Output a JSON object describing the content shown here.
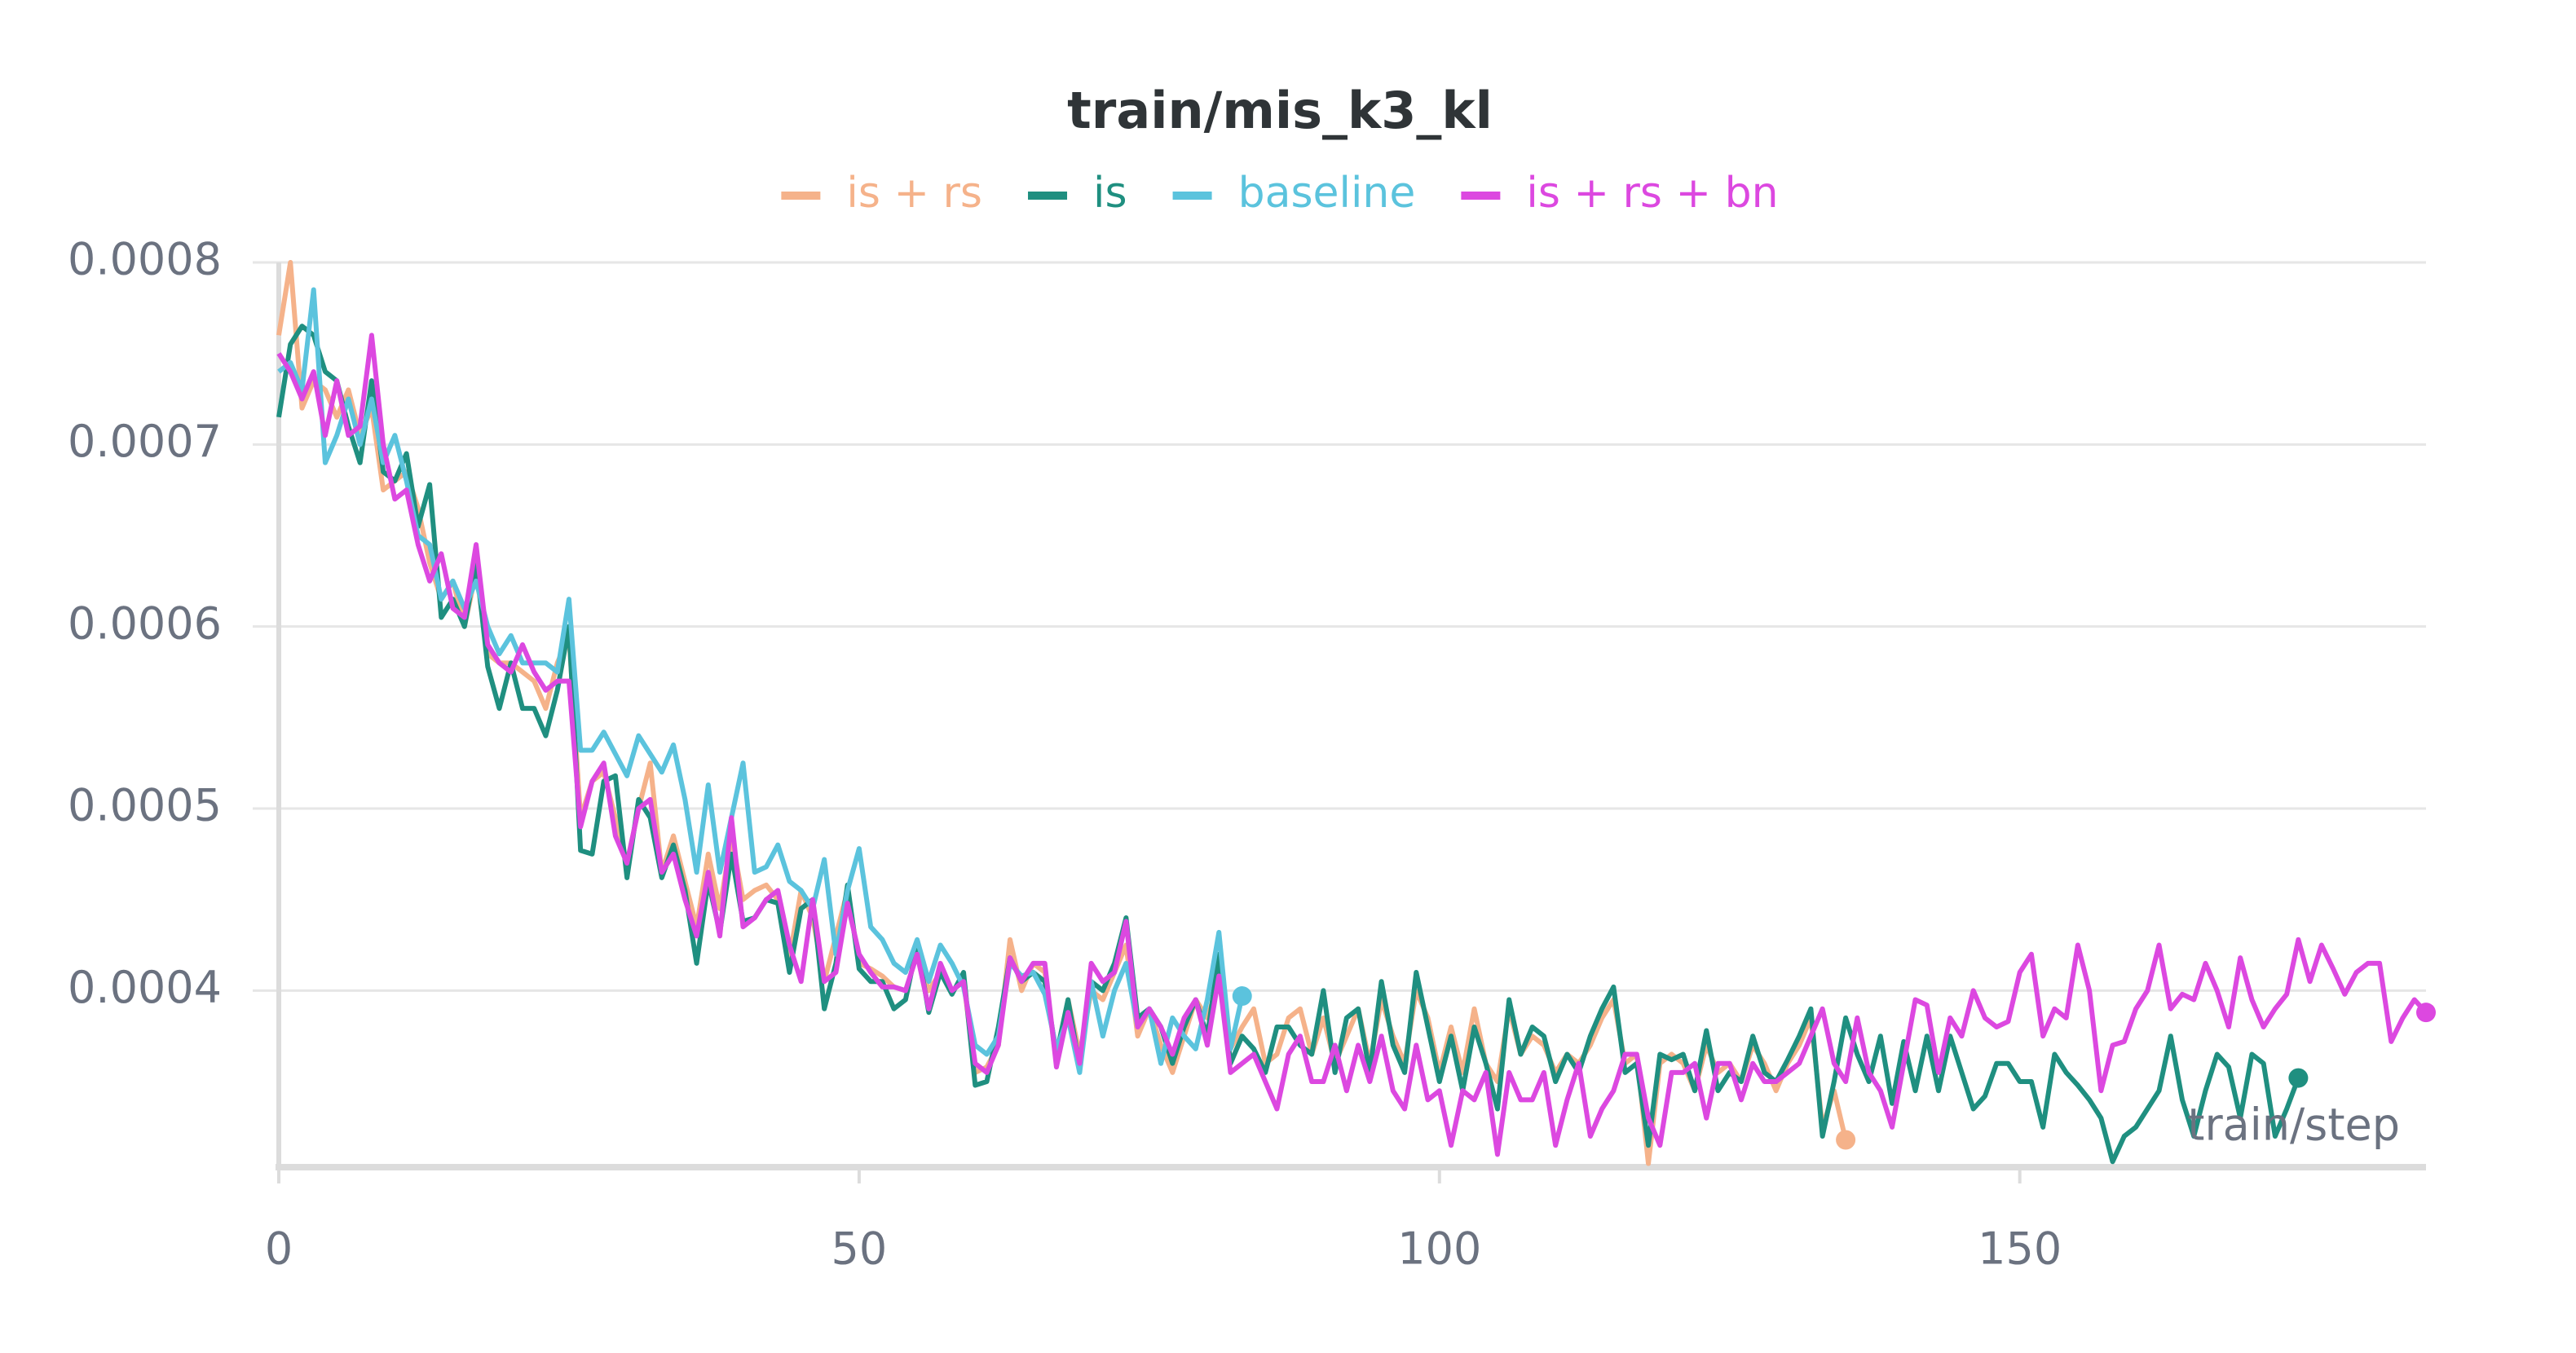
{
  "chart_data": {
    "type": "line",
    "title": "train/mis_k3_kl",
    "xlabel": "train/step",
    "xlim": [
      0,
      185
    ],
    "xticks": [
      0,
      50,
      100,
      150
    ],
    "ylim": [
      0.000303,
      0.0008
    ],
    "yticks": [
      0.0004,
      0.0005,
      0.0006,
      0.0007,
      0.0008
    ],
    "grid": true,
    "legend": "top",
    "end_markers": true,
    "x": [
      0,
      1,
      2,
      3,
      4,
      5,
      6,
      7,
      8,
      9,
      10,
      11,
      12,
      13,
      14,
      15,
      16,
      17,
      18,
      19,
      20,
      21,
      22,
      23,
      24,
      25,
      26,
      27,
      28,
      29,
      30,
      31,
      32,
      33,
      34,
      35,
      36,
      37,
      38,
      39,
      40,
      41,
      42,
      43,
      44,
      45,
      46,
      47,
      48,
      49,
      50,
      51,
      52,
      53,
      54,
      55,
      56,
      57,
      58,
      59,
      60,
      61,
      62,
      63,
      64,
      65,
      66,
      67,
      68,
      69,
      70,
      71,
      72,
      73,
      74,
      75,
      76,
      77,
      78,
      79,
      80,
      81,
      82,
      83,
      84,
      85,
      86,
      87,
      88,
      89,
      90,
      91,
      92,
      93,
      94,
      95,
      96,
      97,
      98,
      99,
      100,
      101,
      102,
      103,
      104,
      105,
      106,
      107,
      108,
      109,
      110,
      111,
      112,
      113,
      114,
      115,
      116,
      117,
      118,
      119,
      120,
      121,
      122,
      123,
      124,
      125,
      126,
      127,
      128,
      129,
      130,
      131,
      132,
      133,
      134,
      135,
      136,
      137,
      138,
      139,
      140,
      141,
      142,
      143,
      144,
      145,
      146,
      147,
      148,
      149,
      150,
      151,
      152,
      153,
      154,
      155,
      156,
      157,
      158,
      159,
      160,
      161,
      162,
      163,
      164,
      165,
      166,
      167,
      168,
      169,
      170,
      171,
      172,
      173,
      174,
      175,
      176,
      177,
      178,
      179,
      180,
      181,
      182,
      183,
      184,
      185
    ],
    "series": [
      {
        "name": "is + rs",
        "color": "#f5b28a",
        "values": [
          0.00076,
          0.0008,
          0.00072,
          0.000735,
          0.00073,
          0.000715,
          0.00073,
          0.000705,
          0.00072,
          0.000675,
          0.00068,
          0.000685,
          0.000665,
          0.000635,
          0.000615,
          0.000625,
          0.0006,
          0.00063,
          0.000585,
          0.00058,
          0.00058,
          0.000575,
          0.00057,
          0.000555,
          0.00058,
          0.000595,
          0.000495,
          0.000515,
          0.00052,
          0.000495,
          0.00047,
          0.0005,
          0.000525,
          0.000465,
          0.000485,
          0.00046,
          0.000435,
          0.000475,
          0.000445,
          0.000485,
          0.00045,
          0.000455,
          0.000458,
          0.00045,
          0.000418,
          0.000455,
          0.00044,
          0.000405,
          0.00043,
          0.000455,
          0.000415,
          0.000412,
          0.000408,
          0.000402,
          0.0004,
          0.00042,
          0.0004,
          0.00041,
          0.0004,
          0.000405,
          0.000355,
          0.000358,
          0.00037,
          0.000428,
          0.0004,
          0.000415,
          0.00041,
          0.00036,
          0.000395,
          0.000365,
          0.0004,
          0.000395,
          0.00041,
          0.000425,
          0.000375,
          0.00039,
          0.00037,
          0.000355,
          0.000375,
          0.000395,
          0.000385,
          0.000405,
          0.000368,
          0.00038,
          0.00039,
          0.00036,
          0.000365,
          0.000385,
          0.00039,
          0.000365,
          0.000385,
          0.00036,
          0.000375,
          0.00039,
          0.00036,
          0.000395,
          0.000375,
          0.00036,
          0.0004,
          0.000385,
          0.000355,
          0.00038,
          0.000355,
          0.00039,
          0.00036,
          0.00035,
          0.00039,
          0.000365,
          0.000375,
          0.00037,
          0.000355,
          0.000365,
          0.00036,
          0.00037,
          0.000385,
          0.000395,
          0.00036,
          0.000365,
          0.000305,
          0.00036,
          0.000365,
          0.00036,
          0.000345,
          0.00037,
          0.000355,
          0.00036,
          0.00035,
          0.00037,
          0.00036,
          0.000345,
          0.00036,
          0.00037,
          0.000385,
          0.000325,
          0.000345,
          0.000318,
          null,
          null,
          null,
          null,
          null,
          null,
          null,
          null,
          null,
          null,
          null,
          null,
          null,
          null,
          null,
          null,
          null,
          null,
          null,
          null,
          null,
          null,
          null,
          null,
          null,
          null,
          null,
          null,
          null,
          null,
          null,
          null,
          null,
          null,
          null,
          null,
          null,
          null,
          null,
          null,
          null,
          null,
          null,
          null,
          null,
          null,
          null,
          null,
          null,
          null
        ]
      },
      {
        "name": "is",
        "color": "#1f8f80",
        "values": [
          0.000715,
          0.000755,
          0.000765,
          0.00076,
          0.00074,
          0.000735,
          0.00071,
          0.00069,
          0.000735,
          0.000685,
          0.00068,
          0.000695,
          0.000655,
          0.000678,
          0.000605,
          0.000615,
          0.0006,
          0.000635,
          0.000578,
          0.000555,
          0.00058,
          0.000555,
          0.000555,
          0.00054,
          0.000565,
          0.0006,
          0.000477,
          0.000475,
          0.000515,
          0.000518,
          0.000462,
          0.000505,
          0.000495,
          0.000462,
          0.00048,
          0.000455,
          0.000415,
          0.00046,
          0.000432,
          0.000475,
          0.000438,
          0.00044,
          0.00045,
          0.000448,
          0.00041,
          0.000445,
          0.00045,
          0.00039,
          0.000415,
          0.000458,
          0.000412,
          0.000405,
          0.000405,
          0.00039,
          0.000395,
          0.000425,
          0.000388,
          0.00041,
          0.000398,
          0.00041,
          0.000348,
          0.00035,
          0.00038,
          0.000418,
          0.000405,
          0.00041,
          0.000405,
          0.000365,
          0.000395,
          0.000358,
          0.000405,
          0.0004,
          0.000415,
          0.00044,
          0.000385,
          0.00039,
          0.00038,
          0.00036,
          0.00038,
          0.000395,
          0.000375,
          0.00042,
          0.00036,
          0.000375,
          0.000368,
          0.000355,
          0.00038,
          0.00038,
          0.00037,
          0.000365,
          0.0004,
          0.000355,
          0.000385,
          0.00039,
          0.000355,
          0.000405,
          0.00037,
          0.000355,
          0.00041,
          0.00038,
          0.00035,
          0.000375,
          0.000345,
          0.00038,
          0.00036,
          0.000335,
          0.000395,
          0.000365,
          0.00038,
          0.000375,
          0.00035,
          0.000365,
          0.000355,
          0.000375,
          0.00039,
          0.000402,
          0.000355,
          0.00036,
          0.000315,
          0.000365,
          0.000362,
          0.000365,
          0.000345,
          0.000378,
          0.000345,
          0.000355,
          0.00035,
          0.000375,
          0.000355,
          0.00035,
          0.000362,
          0.000375,
          0.00039,
          0.00032,
          0.00035,
          0.000385,
          0.000365,
          0.00035,
          0.000375,
          0.000338,
          0.000372,
          0.000345,
          0.000375,
          0.000345,
          0.000375,
          0.000355,
          0.000335,
          0.000342,
          0.00036,
          0.00036,
          0.00035,
          0.00035,
          0.000325,
          0.000365,
          0.000355,
          0.000348,
          0.00034,
          0.00033,
          0.000306,
          0.00032,
          0.000325,
          0.000335,
          0.000345,
          0.000375,
          0.00034,
          0.00032,
          0.000345,
          0.000365,
          0.000358,
          0.00033,
          0.000365,
          0.00036,
          0.00032,
          0.000335,
          0.000352,
          null,
          null,
          null,
          null,
          null,
          null,
          null,
          null,
          null,
          null,
          null
        ]
      },
      {
        "name": "baseline",
        "color": "#5bc3dd",
        "values": [
          0.00074,
          0.000745,
          0.00073,
          0.000785,
          0.00069,
          0.000705,
          0.000725,
          0.0007,
          0.000725,
          0.00069,
          0.000705,
          0.00068,
          0.00065,
          0.000645,
          0.000615,
          0.000625,
          0.00061,
          0.000625,
          0.0006,
          0.000585,
          0.000595,
          0.00058,
          0.00058,
          0.00058,
          0.000575,
          0.000615,
          0.000532,
          0.000532,
          0.000542,
          0.00053,
          0.000518,
          0.00054,
          0.00053,
          0.00052,
          0.000535,
          0.000505,
          0.000465,
          0.000513,
          0.000465,
          0.000495,
          0.000525,
          0.000465,
          0.000468,
          0.00048,
          0.00046,
          0.000455,
          0.000445,
          0.000472,
          0.00042,
          0.000455,
          0.000478,
          0.000435,
          0.000428,
          0.000415,
          0.00041,
          0.000428,
          0.000405,
          0.000425,
          0.000415,
          0.000402,
          0.00037,
          0.000365,
          0.000375,
          0.000415,
          0.000408,
          0.00041,
          0.000398,
          0.000368,
          0.000385,
          0.000355,
          0.000405,
          0.000375,
          0.0004,
          0.000415,
          0.00038,
          0.00039,
          0.00036,
          0.000385,
          0.000375,
          0.000368,
          0.000395,
          0.000432,
          0.000368,
          0.000397,
          null,
          null,
          null,
          null,
          null,
          null,
          null,
          null,
          null,
          null,
          null,
          null,
          null,
          null,
          null,
          null,
          null,
          null,
          null,
          null,
          null,
          null,
          null,
          null,
          null,
          null,
          null,
          null,
          null,
          null,
          null,
          null,
          null,
          null,
          null,
          null,
          null,
          null,
          null,
          null,
          null,
          null,
          null,
          null,
          null,
          null,
          null,
          null,
          null,
          null,
          null,
          null,
          null,
          null,
          null,
          null,
          null,
          null,
          null,
          null,
          null,
          null,
          null,
          null,
          null,
          null,
          null,
          null,
          null,
          null,
          null,
          null,
          null,
          null,
          null,
          null,
          null,
          null,
          null,
          null,
          null,
          null,
          null,
          null,
          null,
          null,
          null,
          null,
          null,
          null,
          null,
          null,
          null,
          null,
          null,
          null,
          null,
          null,
          null,
          null,
          null,
          null
        ]
      },
      {
        "name": "is + rs + bn",
        "color": "#dc48e0",
        "values": [
          0.00075,
          0.00074,
          0.000725,
          0.00074,
          0.000705,
          0.000735,
          0.000705,
          0.00071,
          0.00076,
          0.0007,
          0.00067,
          0.000675,
          0.000645,
          0.000625,
          0.00064,
          0.00061,
          0.000605,
          0.000645,
          0.00059,
          0.00058,
          0.000575,
          0.00059,
          0.000575,
          0.000565,
          0.00057,
          0.00057,
          0.00049,
          0.000515,
          0.000525,
          0.000485,
          0.00047,
          0.0005,
          0.000505,
          0.000465,
          0.000475,
          0.00045,
          0.00043,
          0.000465,
          0.00043,
          0.000495,
          0.000435,
          0.00044,
          0.00045,
          0.000455,
          0.000425,
          0.000405,
          0.00045,
          0.000405,
          0.00041,
          0.000448,
          0.00042,
          0.00041,
          0.000402,
          0.000402,
          0.0004,
          0.00042,
          0.00039,
          0.000415,
          0.0004,
          0.000405,
          0.00036,
          0.000355,
          0.00037,
          0.000418,
          0.000405,
          0.000415,
          0.000415,
          0.000358,
          0.000388,
          0.00036,
          0.000415,
          0.000405,
          0.00041,
          0.000438,
          0.00038,
          0.00039,
          0.00038,
          0.000365,
          0.000385,
          0.000395,
          0.00037,
          0.000408,
          0.000355,
          0.00036,
          0.000365,
          0.00035,
          0.000335,
          0.000365,
          0.000375,
          0.00035,
          0.00035,
          0.00037,
          0.000345,
          0.00037,
          0.00035,
          0.000375,
          0.000345,
          0.000335,
          0.00037,
          0.00034,
          0.000345,
          0.000315,
          0.000345,
          0.00034,
          0.000355,
          0.00031,
          0.000355,
          0.00034,
          0.00034,
          0.000355,
          0.000315,
          0.00034,
          0.00036,
          0.00032,
          0.000335,
          0.000345,
          0.000365,
          0.000365,
          0.00033,
          0.000315,
          0.000355,
          0.000355,
          0.00036,
          0.00033,
          0.00036,
          0.00036,
          0.00034,
          0.00036,
          0.00035,
          0.00035,
          0.000355,
          0.00036,
          0.000375,
          0.00039,
          0.00036,
          0.00035,
          0.000385,
          0.000355,
          0.000345,
          0.000325,
          0.00036,
          0.000395,
          0.000392,
          0.000355,
          0.000385,
          0.000375,
          0.0004,
          0.000385,
          0.00038,
          0.000383,
          0.00041,
          0.00042,
          0.000375,
          0.00039,
          0.000385,
          0.000425,
          0.0004,
          0.000345,
          0.00037,
          0.000372,
          0.00039,
          0.0004,
          0.000425,
          0.00039,
          0.000398,
          0.000395,
          0.000415,
          0.0004,
          0.00038,
          0.000418,
          0.000395,
          0.00038,
          0.00039,
          0.000398,
          0.000428,
          0.000405,
          0.000425,
          0.000412,
          0.000398,
          0.00041,
          0.000415,
          0.000415,
          0.000372,
          0.000385,
          0.000395,
          0.000388
        ]
      }
    ]
  }
}
